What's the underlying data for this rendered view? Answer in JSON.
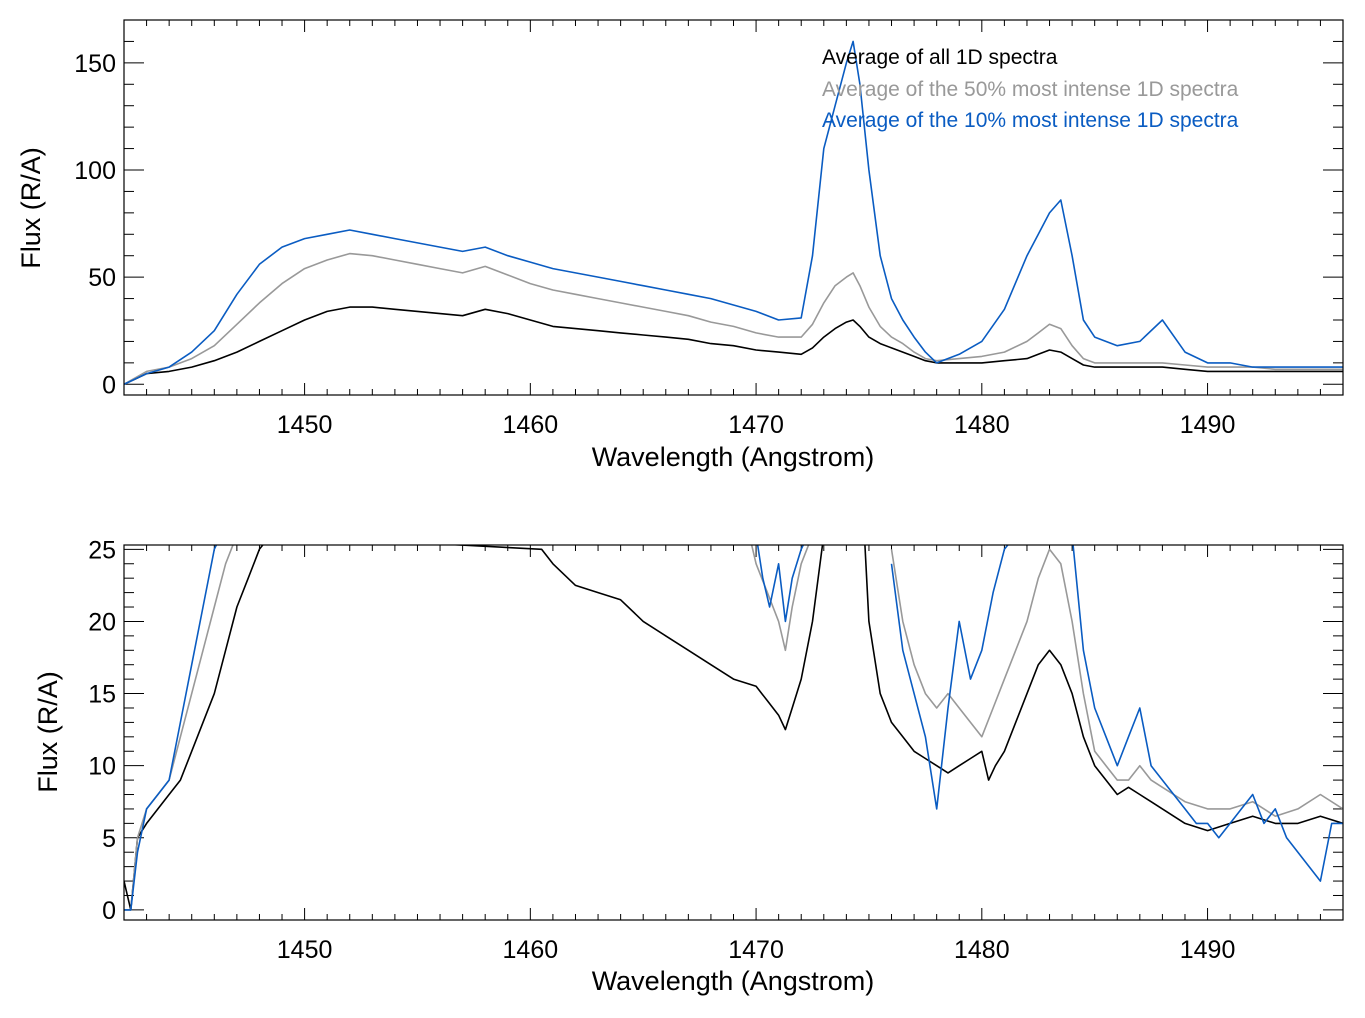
{
  "colors": {
    "all": "#000000",
    "top50": "#999999",
    "top10": "#0a5cc2"
  },
  "chart_data": [
    {
      "type": "line",
      "xlabel": "Wavelength (Angstrom)",
      "ylabel": "Flux (R/A)",
      "xlim": [
        1442,
        1496
      ],
      "ylim": [
        -5,
        170
      ],
      "xticks": [
        1450,
        1460,
        1470,
        1480,
        1490
      ],
      "yticks": [
        0,
        50,
        100,
        150
      ],
      "legend": {
        "placement": "top-right"
      },
      "series": [
        {
          "name": "Average of all 1D spectra",
          "color_key": "all",
          "x": [
            1442,
            1443,
            1444,
            1445,
            1446,
            1447,
            1448,
            1449,
            1450,
            1451,
            1452,
            1453,
            1454,
            1455,
            1456,
            1457,
            1458,
            1459,
            1460,
            1461,
            1462,
            1463,
            1464,
            1465,
            1466,
            1467,
            1468,
            1469,
            1470,
            1471,
            1472,
            1472.5,
            1473,
            1473.5,
            1474,
            1474.3,
            1474.6,
            1475,
            1475.5,
            1476,
            1476.5,
            1477,
            1477.5,
            1478,
            1479,
            1480,
            1481,
            1482,
            1482.5,
            1483,
            1483.5,
            1484,
            1484.5,
            1485,
            1486,
            1487,
            1488,
            1489,
            1490,
            1491,
            1492,
            1493,
            1494,
            1495,
            1496
          ],
          "y": [
            0,
            5,
            6,
            8,
            11,
            15,
            20,
            25,
            30,
            34,
            36,
            36,
            35,
            34,
            33,
            32,
            35,
            33,
            30,
            27,
            26,
            25,
            24,
            23,
            22,
            21,
            19,
            18,
            16,
            15,
            14,
            17,
            22,
            26,
            29,
            30,
            27,
            22,
            19,
            17,
            15,
            13,
            11,
            10,
            10,
            10,
            11,
            12,
            14,
            16,
            15,
            12,
            9,
            8,
            8,
            8,
            8,
            7,
            6,
            6,
            6,
            6,
            6,
            6,
            6
          ]
        },
        {
          "name": "Average of the 50% most intense 1D spectra",
          "color_key": "top50",
          "x": [
            1442,
            1443,
            1444,
            1445,
            1446,
            1447,
            1448,
            1449,
            1450,
            1451,
            1452,
            1453,
            1454,
            1455,
            1456,
            1457,
            1458,
            1459,
            1460,
            1461,
            1462,
            1463,
            1464,
            1465,
            1466,
            1467,
            1468,
            1469,
            1470,
            1471,
            1472,
            1472.5,
            1473,
            1473.5,
            1474,
            1474.3,
            1474.6,
            1475,
            1475.5,
            1476,
            1476.5,
            1477,
            1477.5,
            1478,
            1479,
            1480,
            1481,
            1482,
            1482.5,
            1483,
            1483.5,
            1484,
            1484.5,
            1485,
            1486,
            1487,
            1488,
            1489,
            1490,
            1491,
            1492,
            1493,
            1494,
            1495,
            1496
          ],
          "y": [
            0,
            6,
            8,
            12,
            18,
            28,
            38,
            47,
            54,
            58,
            61,
            60,
            58,
            56,
            54,
            52,
            55,
            51,
            47,
            44,
            42,
            40,
            38,
            36,
            34,
            32,
            29,
            27,
            24,
            22,
            22,
            28,
            38,
            46,
            50,
            52,
            46,
            36,
            27,
            22,
            19,
            15,
            12,
            11,
            12,
            13,
            15,
            20,
            24,
            28,
            26,
            18,
            12,
            10,
            10,
            10,
            10,
            9,
            8,
            8,
            8,
            7,
            7,
            7,
            7
          ]
        },
        {
          "name": "Average of the 10% most intense 1D spectra",
          "color_key": "top10",
          "x": [
            1442,
            1443,
            1444,
            1445,
            1446,
            1447,
            1448,
            1449,
            1450,
            1451,
            1452,
            1453,
            1454,
            1455,
            1456,
            1457,
            1458,
            1459,
            1460,
            1461,
            1462,
            1463,
            1464,
            1465,
            1466,
            1467,
            1468,
            1469,
            1470,
            1471,
            1472,
            1472.5,
            1473,
            1473.5,
            1474,
            1474.3,
            1474.6,
            1475,
            1475.5,
            1476,
            1476.5,
            1477,
            1477.5,
            1478,
            1479,
            1480,
            1481,
            1482,
            1482.5,
            1483,
            1483.5,
            1484,
            1484.5,
            1485,
            1486,
            1487,
            1488,
            1489,
            1490,
            1491,
            1492,
            1493,
            1494,
            1495,
            1496
          ],
          "y": [
            0,
            5,
            8,
            15,
            25,
            42,
            56,
            64,
            68,
            70,
            72,
            70,
            68,
            66,
            64,
            62,
            64,
            60,
            57,
            54,
            52,
            50,
            48,
            46,
            44,
            42,
            40,
            37,
            34,
            30,
            31,
            60,
            110,
            130,
            150,
            160,
            140,
            100,
            60,
            40,
            30,
            22,
            15,
            10,
            14,
            20,
            35,
            60,
            70,
            80,
            86,
            60,
            30,
            22,
            18,
            20,
            30,
            15,
            10,
            10,
            8,
            8,
            8,
            8,
            8
          ]
        }
      ]
    },
    {
      "type": "line",
      "xlabel": "Wavelength (Angstrom)",
      "ylabel": "Flux (R/A)",
      "xlim": [
        1442,
        1496
      ],
      "ylim": [
        -0.7,
        25.3
      ],
      "xticks": [
        1450,
        1460,
        1470,
        1480,
        1490
      ],
      "yticks": [
        0,
        5,
        10,
        15,
        20,
        25
      ],
      "series": [
        {
          "color_key": "all",
          "x": [
            1442,
            1442.3,
            1442.6,
            1443,
            1443.5,
            1444,
            1444.5,
            1445,
            1445.5,
            1446,
            1446.5,
            1447,
            1447.5,
            1448,
            1448.5,
            1460.5,
            1461,
            1462,
            1463,
            1464,
            1465,
            1466,
            1467,
            1468,
            1469,
            1470,
            1470.5,
            1471,
            1471.3,
            1471.6,
            1472,
            1472.5,
            1473
          ],
          "y": [
            2,
            0,
            5,
            6,
            7,
            8,
            9,
            11,
            13,
            15,
            18,
            21,
            23,
            25,
            26,
            25,
            24,
            22.5,
            22,
            21.5,
            20,
            19,
            18,
            17,
            16,
            15.5,
            14.5,
            13.5,
            12.5,
            14,
            16,
            20,
            26
          ]
        },
        {
          "color_key": "all",
          "x": [
            1474.8,
            1475,
            1475.5,
            1476,
            1476.5,
            1477,
            1477.5,
            1478,
            1478.5,
            1479,
            1479.5,
            1480,
            1480.3,
            1480.6,
            1481,
            1481.5,
            1482,
            1482.5,
            1483,
            1483.5,
            1484,
            1484.5,
            1485,
            1485.5,
            1486,
            1486.5,
            1487,
            1487.5,
            1488,
            1488.5,
            1489,
            1490,
            1491,
            1492,
            1493,
            1494,
            1495,
            1496
          ],
          "y": [
            26,
            20,
            15,
            13,
            12,
            11,
            10.5,
            10,
            9.5,
            10,
            10.5,
            11,
            9,
            10,
            11,
            13,
            15,
            17,
            18,
            17,
            15,
            12,
            10,
            9,
            8,
            8.5,
            8,
            7.5,
            7,
            6.5,
            6,
            5.5,
            6,
            6.5,
            6,
            6,
            6.5,
            6
          ]
        },
        {
          "color_key": "top50",
          "x": [
            1442,
            1442.3,
            1442.6,
            1443,
            1443.5,
            1444,
            1444.5,
            1445,
            1445.5,
            1446,
            1446.5,
            1447,
            1469.7,
            1470,
            1470.5,
            1471,
            1471.3,
            1471.6,
            1472,
            1472.5
          ],
          "y": [
            0,
            0,
            5,
            7,
            8,
            9,
            12,
            15,
            18,
            21,
            24,
            26,
            26,
            24,
            22,
            20,
            18,
            21,
            24,
            26
          ]
        },
        {
          "color_key": "top50",
          "x": [
            1476,
            1476.5,
            1477,
            1477.5,
            1478,
            1478.5,
            1479,
            1479.5,
            1480,
            1480.5,
            1481,
            1481.5,
            1482,
            1482.5,
            1483,
            1483.5,
            1484,
            1484.5,
            1485,
            1485.5,
            1486,
            1486.5,
            1487,
            1487.5,
            1488,
            1488.5,
            1489,
            1490,
            1491,
            1492,
            1493,
            1494,
            1495,
            1496
          ],
          "y": [
            25,
            20,
            17,
            15,
            14,
            15,
            14,
            13,
            12,
            14,
            16,
            18,
            20,
            23,
            25,
            24,
            20,
            15,
            11,
            10,
            9,
            9,
            10,
            9,
            8.5,
            8,
            7.5,
            7,
            7,
            7.5,
            6.5,
            7,
            8,
            7
          ]
        },
        {
          "color_key": "top10",
          "x": [
            1442,
            1442.3,
            1442.6,
            1443,
            1443.5,
            1444,
            1444.5,
            1445,
            1445.5,
            1446,
            1446.3
          ],
          "y": [
            0,
            0,
            4,
            7,
            8,
            9,
            13,
            17,
            21,
            25,
            26
          ]
        },
        {
          "color_key": "top10",
          "x": [
            1470,
            1470.3,
            1470.6,
            1471,
            1471.3,
            1471.6,
            1472,
            1472.3
          ],
          "y": [
            26,
            23,
            21,
            24,
            20,
            23,
            25,
            26
          ]
        },
        {
          "color_key": "top10",
          "x": [
            1476,
            1476.5,
            1477,
            1477.5,
            1478,
            1478.5,
            1479,
            1479.5,
            1480,
            1480.5,
            1481,
            1481.5,
            1482,
            1482.5,
            1483,
            1483.5,
            1484,
            1484.5,
            1485,
            1485.5,
            1486,
            1486.5,
            1487,
            1487.5,
            1488,
            1488.5,
            1489,
            1489.5,
            1490,
            1490.5,
            1491,
            1491.5,
            1492,
            1492.5,
            1493,
            1493.5,
            1494,
            1494.5,
            1495,
            1495.5,
            1496
          ],
          "y": [
            24,
            18,
            15,
            12,
            7,
            14,
            20,
            16,
            18,
            22,
            25,
            26,
            26,
            26,
            26,
            26,
            26,
            18,
            14,
            12,
            10,
            12,
            14,
            10,
            9,
            8,
            7,
            6,
            6,
            5,
            6,
            7,
            8,
            6,
            7,
            5,
            4,
            3,
            2,
            6,
            6
          ]
        }
      ]
    }
  ]
}
